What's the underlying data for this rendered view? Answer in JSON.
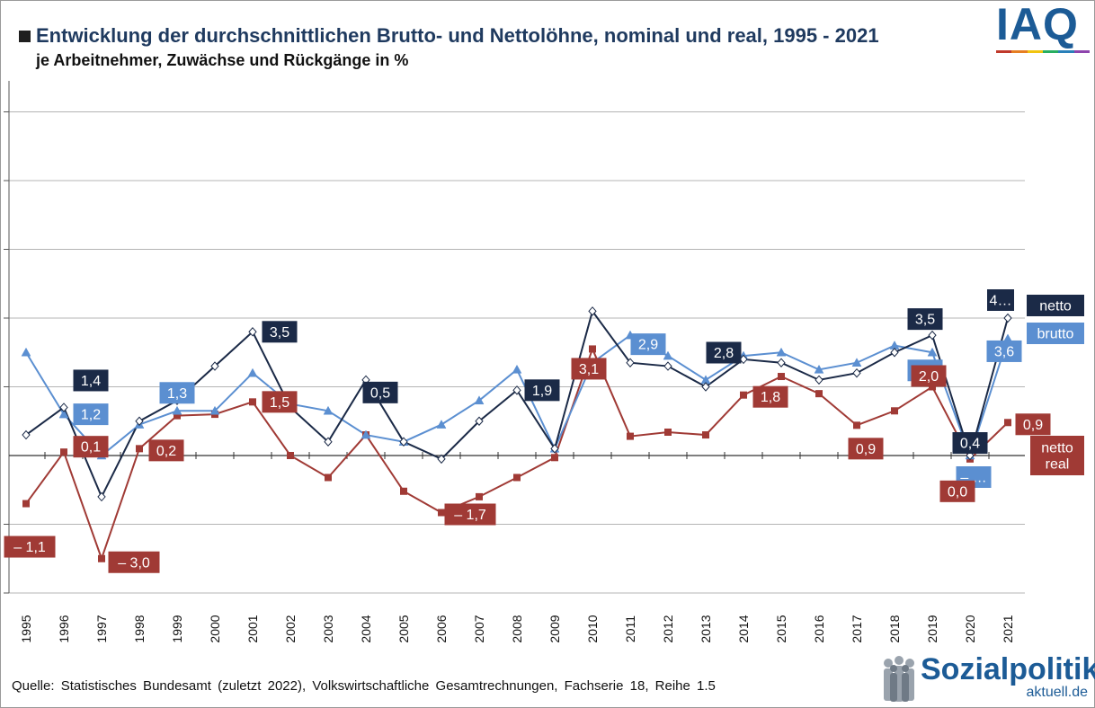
{
  "header": {
    "title": "Entwicklung der durchschnittlichen Brutto- und Nettolöhne, nominal und real, 1995 - 2021",
    "subtitle": "je Arbeitnehmer,  Zuwächse  und Rückgänge in %"
  },
  "logo": {
    "text": "IAQ",
    "bar_colors": [
      "#c0392b",
      "#e67e22",
      "#f1c40f",
      "#27ae60",
      "#2980b9",
      "#8e44ad"
    ]
  },
  "footer": {
    "source": "Quelle:  Statistisches  Bundesamt  (zuletzt  2022),  Volkswirtschaftliche  Gesamtrechnungen,  Fachserie 18, Reihe 1.5",
    "brand": "Sozialpolitik-",
    "brand_sub": "aktuell.de"
  },
  "colors": {
    "netto": "#1b2a47",
    "brutto": "#5b8fd1",
    "real": "#a03a35",
    "grid": "#b4b4b4"
  },
  "chart_data": {
    "type": "line",
    "title": "Entwicklung der durchschnittlichen Brutto- und Nettolöhne, nominal und real, 1995 - 2021",
    "subtitle": "je Arbeitnehmer, Zuwächse und Rückgänge in %",
    "ylim": [
      -4,
      5
    ],
    "yticks": [
      -4,
      -3,
      -2,
      -1,
      0,
      1,
      2,
      3,
      4,
      5
    ],
    "grid": true,
    "x": [
      "1995",
      "1996",
      "1997",
      "1998",
      "1999",
      "2000",
      "2001",
      "2002",
      "2003",
      "2004",
      "2005",
      "2006",
      "2007",
      "2008",
      "2009",
      "2010",
      "2011",
      "2012",
      "2013",
      "2014",
      "2015",
      "2016",
      "2017",
      "2018",
      "2019",
      "2020",
      "2021"
    ],
    "series": [
      {
        "name": "netto",
        "marker": "diamond",
        "values": [
          0.3,
          0.7,
          -0.6,
          0.5,
          0.8,
          1.3,
          1.8,
          0.7,
          0.2,
          1.1,
          0.2,
          -0.05,
          0.5,
          0.95,
          0.1,
          2.1,
          1.35,
          1.3,
          1.0,
          1.4,
          1.35,
          1.1,
          1.2,
          1.5,
          1.75,
          0.0,
          2.0
        ]
      },
      {
        "name": "brutto",
        "marker": "triangle",
        "values": [
          1.5,
          0.6,
          0.0,
          0.45,
          0.65,
          0.65,
          1.2,
          0.75,
          0.65,
          0.3,
          0.2,
          0.45,
          0.8,
          1.25,
          0.1,
          1.35,
          1.75,
          1.45,
          1.1,
          1.45,
          1.5,
          1.25,
          1.35,
          1.6,
          1.5,
          0.0,
          1.7
        ]
      },
      {
        "name": "netto real",
        "marker": "square",
        "values": [
          -0.7,
          0.05,
          -1.5,
          0.1,
          0.58,
          0.6,
          0.78,
          0.0,
          -0.32,
          0.3,
          -0.52,
          -0.83,
          -0.6,
          -0.32,
          -0.03,
          1.55,
          0.28,
          0.34,
          0.3,
          0.88,
          1.15,
          0.9,
          0.44,
          0.65,
          1.0,
          -0.05,
          0.48
        ]
      }
    ],
    "data_labels": [
      {
        "series": "netto",
        "year": "1996",
        "text": "1,4"
      },
      {
        "series": "netto",
        "year": "2001",
        "text": "3,5"
      },
      {
        "series": "netto",
        "year": "2004",
        "text": "0,5"
      },
      {
        "series": "netto",
        "year": "2008",
        "text": "1,9"
      },
      {
        "series": "netto",
        "year": "2013",
        "text": "2,8"
      },
      {
        "series": "netto",
        "year": "2019",
        "text": "3,5"
      },
      {
        "series": "netto",
        "year": "2020",
        "text": "0,4"
      },
      {
        "series": "netto",
        "year": "2021",
        "text": "4…"
      },
      {
        "series": "brutto",
        "year": "1996",
        "text": "1,2"
      },
      {
        "series": "brutto",
        "year": "1999",
        "text": "1,3"
      },
      {
        "series": "brutto",
        "year": "2011",
        "text": "2,9"
      },
      {
        "series": "brutto",
        "year": "2019",
        "text": "3,0"
      },
      {
        "series": "brutto",
        "year": "2020",
        "text": "– …"
      },
      {
        "series": "brutto",
        "year": "2021",
        "text": "3,6"
      },
      {
        "series": "netto real",
        "year": "1995",
        "text": "– 1,1"
      },
      {
        "series": "netto real",
        "year": "1996",
        "text": "0,1"
      },
      {
        "series": "netto real",
        "year": "1997",
        "text": "– 3,0"
      },
      {
        "series": "netto real",
        "year": "1998",
        "text": "0,2"
      },
      {
        "series": "netto real",
        "year": "2001",
        "text": "1,5"
      },
      {
        "series": "netto real",
        "year": "2006",
        "text": "– 1,7"
      },
      {
        "series": "netto real",
        "year": "2010",
        "text": "3,1"
      },
      {
        "series": "netto real",
        "year": "2014",
        "text": "1,8"
      },
      {
        "series": "netto real",
        "year": "2017",
        "text": "0,9"
      },
      {
        "series": "netto real",
        "year": "2019",
        "text": "2,0"
      },
      {
        "series": "netto real",
        "year": "2020",
        "text": "0,0"
      },
      {
        "series": "netto real",
        "year": "2021",
        "text": "0,9"
      }
    ],
    "legend": [
      {
        "series": "netto",
        "text": "netto"
      },
      {
        "series": "brutto",
        "text": "brutto"
      },
      {
        "series": "netto real",
        "text": "netto real",
        "lines": [
          "netto",
          "real"
        ]
      }
    ],
    "legend_position": "right"
  }
}
